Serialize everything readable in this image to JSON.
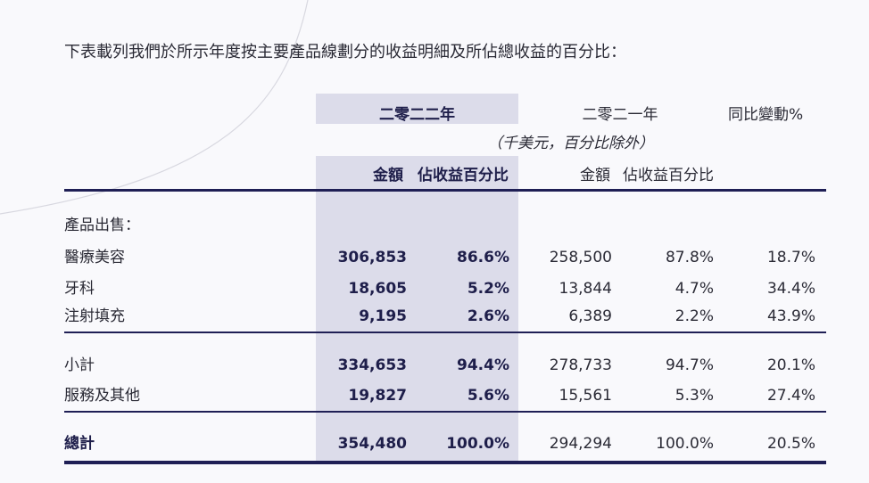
{
  "intro": "下表載列我們於所示年度按主要產品線劃分的收益明細及所佔總收益的百分比：",
  "header": {
    "year_2022": "二零二二年",
    "year_2021": "二零二一年",
    "yoy": "同比變動%",
    "unit_note": "（千美元，百分比除外）",
    "amount": "金額",
    "pct_revenue": "佔收益百分比"
  },
  "section_label": "產品出售：",
  "rows": [
    {
      "label": "醫療美容",
      "a22": "306,853",
      "p22": "86.6%",
      "a21": "258,500",
      "p21": "87.8%",
      "yoy": "18.7%"
    },
    {
      "label": "牙科",
      "a22": "18,605",
      "p22": "5.2%",
      "a21": "13,844",
      "p21": "4.7%",
      "yoy": "34.4%"
    },
    {
      "label": "注射填充",
      "a22": "9,195",
      "p22": "2.6%",
      "a21": "6,389",
      "p21": "2.2%",
      "yoy": "43.9%"
    },
    {
      "label": "小計",
      "a22": "334,653",
      "p22": "94.4%",
      "a21": "278,733",
      "p21": "94.7%",
      "yoy": "20.1%"
    },
    {
      "label": "服務及其他",
      "a22": "19,827",
      "p22": "5.6%",
      "a21": "15,561",
      "p21": "5.3%",
      "yoy": "27.4%"
    },
    {
      "label": "總計",
      "a22": "354,480",
      "p22": "100.0%",
      "a21": "294,294",
      "p21": "100.0%",
      "yoy": "20.5%"
    }
  ]
}
